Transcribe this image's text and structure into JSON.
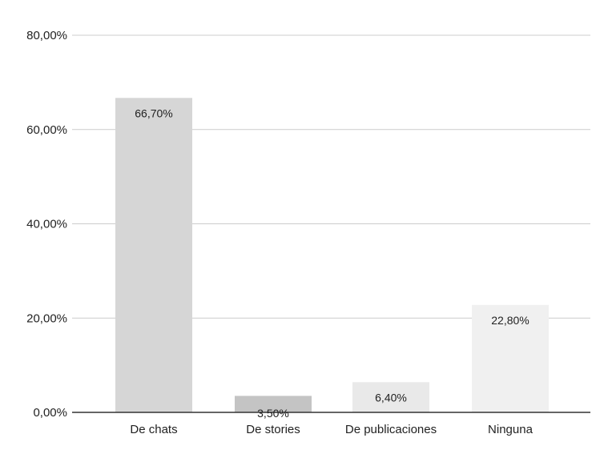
{
  "chart_data": {
    "type": "bar",
    "title": "",
    "xlabel": "",
    "ylabel": "",
    "categories": [
      "De chats",
      "De stories",
      "De publicaciones",
      "Ninguna"
    ],
    "values": [
      66.7,
      3.5,
      6.4,
      22.8
    ],
    "data_labels": [
      "66,70%",
      "3,50%",
      "6,40%",
      "22,80%"
    ],
    "bar_colors": [
      "#d6d6d6",
      "#c4c4c4",
      "#e9e9e9",
      "#f0f0f0"
    ],
    "ylim": [
      0,
      80
    ],
    "yticks": [
      0,
      20,
      40,
      60,
      80
    ],
    "ytick_labels": [
      "0,00%",
      "20,00%",
      "40,00%",
      "60,00%",
      "80,00%"
    ],
    "grid": true,
    "legend": "none",
    "colors": {
      "gridline": "#cccccc",
      "axis": "#333333",
      "text": "#222222"
    }
  }
}
